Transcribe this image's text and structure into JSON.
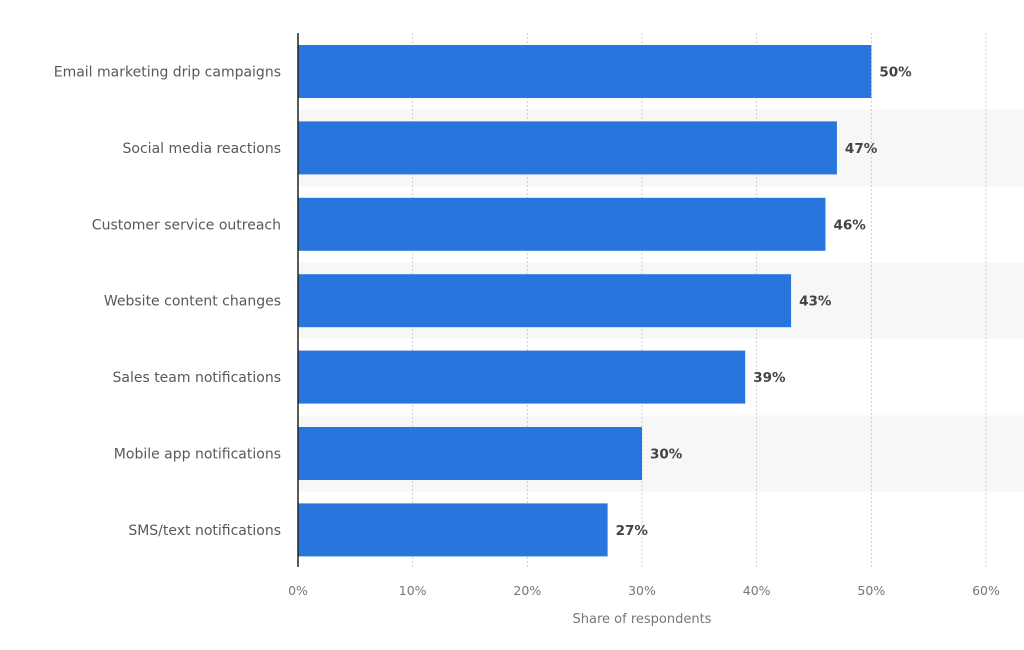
{
  "chart_data": {
    "type": "bar",
    "orientation": "horizontal",
    "categories": [
      "Email marketing drip campaigns",
      "Social media reactions",
      "Customer service outreach",
      "Website content changes",
      "Sales team notifications",
      "Mobile app notifications",
      "SMS/text notifications"
    ],
    "values": [
      50,
      47,
      46,
      43,
      39,
      30,
      27
    ],
    "data_labels": [
      "50%",
      "47%",
      "46%",
      "43%",
      "39%",
      "30%",
      "27%"
    ],
    "xlabel": "Share of respondents",
    "ylabel": "",
    "xlim": [
      0,
      60
    ],
    "xticks": [
      "0%",
      "10%",
      "20%",
      "30%",
      "40%",
      "50%",
      "60%"
    ],
    "grid": true,
    "bar_color": "#2876dd",
    "band_color": "#f7f7f7"
  }
}
